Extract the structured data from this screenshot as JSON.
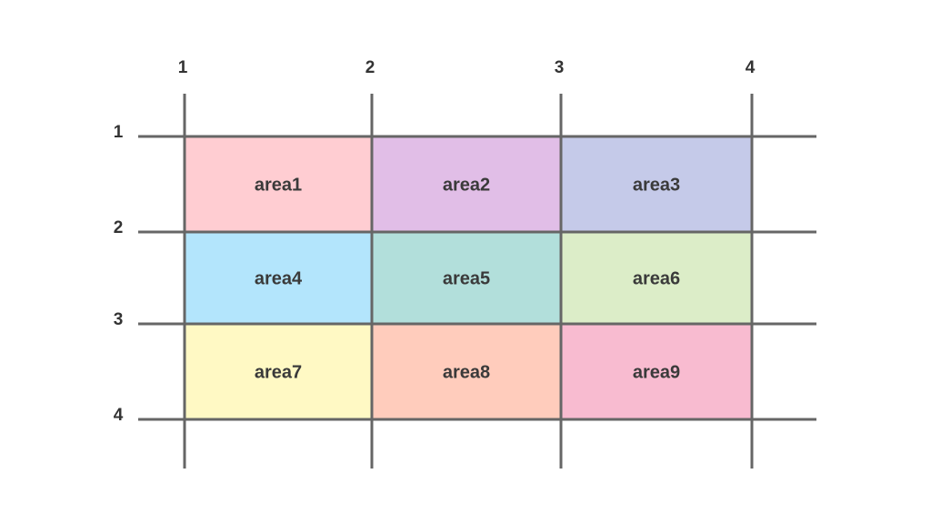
{
  "column_line_labels": [
    "1",
    "2",
    "3",
    "4"
  ],
  "row_line_labels": [
    "1",
    "2",
    "3",
    "4"
  ],
  "areas": [
    {
      "label": "area1",
      "row": 0,
      "col": 0,
      "color": "#ffcdd2"
    },
    {
      "label": "area2",
      "row": 0,
      "col": 1,
      "color": "#e1bee7"
    },
    {
      "label": "area3",
      "row": 0,
      "col": 2,
      "color": "#c5cae9"
    },
    {
      "label": "area4",
      "row": 1,
      "col": 0,
      "color": "#b3e5fc"
    },
    {
      "label": "area5",
      "row": 1,
      "col": 1,
      "color": "#b2dfdb"
    },
    {
      "label": "area6",
      "row": 1,
      "col": 2,
      "color": "#dcedc8"
    },
    {
      "label": "area7",
      "row": 2,
      "col": 0,
      "color": "#fff9c4"
    },
    {
      "label": "area8",
      "row": 2,
      "col": 1,
      "color": "#ffccbc"
    },
    {
      "label": "area9",
      "row": 2,
      "col": 2,
      "color": "#f8bbd0"
    }
  ],
  "line_color": "#666666"
}
